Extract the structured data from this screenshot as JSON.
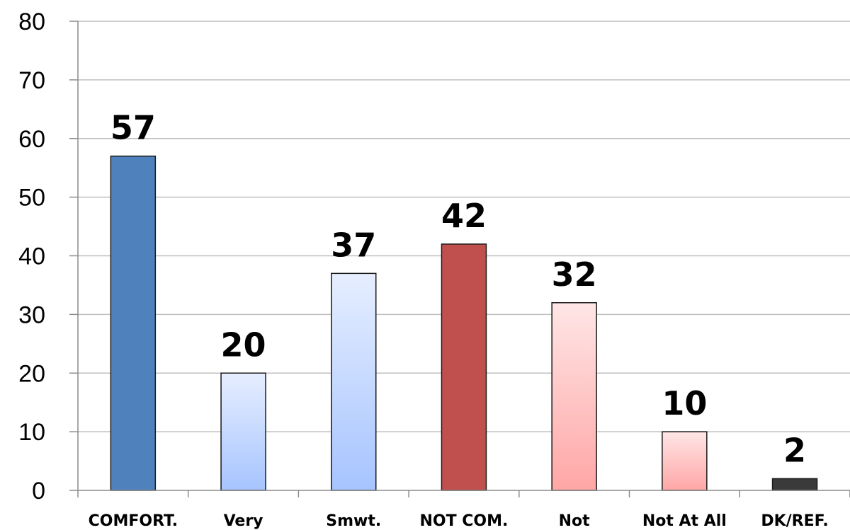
{
  "chart_data": {
    "type": "bar",
    "categories": [
      "COMFORT.",
      "Very",
      "Smwt.",
      "NOT COM.",
      "Not",
      "Not At All",
      "DK/REF."
    ],
    "values": [
      57,
      20,
      37,
      42,
      32,
      10,
      2
    ],
    "data_labels": [
      "57",
      "20",
      "37",
      "42",
      "32",
      "10",
      "2"
    ],
    "ylim": [
      0,
      80
    ],
    "yticks": [
      0,
      10,
      20,
      30,
      40,
      50,
      60,
      70,
      80
    ],
    "grid": true,
    "legend": "none",
    "bar_styles": [
      {
        "top": "#4f81bd",
        "bottom": "#4f81bd"
      },
      {
        "top": "#e6eeff",
        "bottom": "#a6c4ff"
      },
      {
        "top": "#e6eeff",
        "bottom": "#a6c4ff"
      },
      {
        "top": "#c0504d",
        "bottom": "#c0504d"
      },
      {
        "top": "#ffe6e6",
        "bottom": "#ffa6a6"
      },
      {
        "top": "#ffe6e6",
        "bottom": "#ffa6a6"
      },
      {
        "top": "#3a3a3a",
        "bottom": "#3a3a3a"
      }
    ],
    "gridline_color": "#bfbfbf",
    "axis_color": "#8c8c8c"
  }
}
